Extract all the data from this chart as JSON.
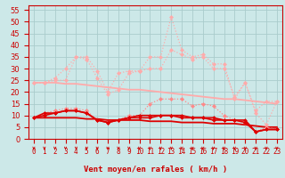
{
  "background_color": "#cce8e8",
  "grid_color": "#aacccc",
  "xlabel": "Vent moyen/en rafales ( km/h )",
  "x_labels": [
    "0",
    "1",
    "2",
    "3",
    "4",
    "5",
    "6",
    "7",
    "8",
    "9",
    "10",
    "11",
    "12",
    "13",
    "14",
    "15",
    "16",
    "17",
    "18",
    "19",
    "20",
    "21",
    "22",
    "23"
  ],
  "ylim": [
    0,
    57
  ],
  "yticks": [
    0,
    5,
    10,
    15,
    20,
    25,
    30,
    35,
    40,
    45,
    50,
    55
  ],
  "lines": [
    {
      "name": "rafales_high",
      "color": "#ffaaaa",
      "lw": 0.9,
      "marker": "D",
      "markersize": 2.2,
      "linestyle": ":",
      "y": [
        24,
        24,
        25,
        25,
        35,
        35,
        29,
        20,
        28,
        29,
        29,
        35,
        35,
        52,
        38,
        35,
        36,
        32,
        32,
        17,
        24,
        12,
        16,
        16
      ]
    },
    {
      "name": "rafales_mid",
      "color": "#ffaaaa",
      "lw": 0.9,
      "marker": "D",
      "markersize": 2.2,
      "linestyle": ":",
      "y": [
        24,
        24,
        26,
        30,
        35,
        34,
        26,
        19,
        21,
        28,
        29,
        30,
        30,
        38,
        36,
        34,
        35,
        30,
        30,
        18,
        24,
        11,
        6,
        16
      ]
    },
    {
      "name": "vent_mid",
      "color": "#ff8888",
      "lw": 0.9,
      "marker": "D",
      "markersize": 2.2,
      "linestyle": ":",
      "y": [
        9,
        11,
        12,
        13,
        13,
        12,
        8,
        7,
        8,
        10,
        10,
        15,
        17,
        17,
        17,
        14,
        15,
        14,
        10,
        8,
        7,
        3,
        5,
        4
      ]
    },
    {
      "name": "vent_dark1",
      "color": "#dd0000",
      "lw": 1.2,
      "marker": "D",
      "markersize": 2.0,
      "linestyle": "-",
      "y": [
        9,
        11,
        11,
        12,
        12,
        11,
        8,
        7,
        8,
        9,
        10,
        10,
        10,
        10,
        10,
        9,
        9,
        9,
        8,
        8,
        8,
        3,
        4,
        4
      ]
    },
    {
      "name": "vent_dark2",
      "color": "#dd0000",
      "lw": 1.2,
      "marker": "D",
      "markersize": 2.0,
      "linestyle": "-",
      "y": [
        9,
        10,
        11,
        12,
        12,
        11,
        8,
        7,
        8,
        9,
        9,
        9,
        10,
        10,
        9,
        9,
        9,
        8,
        8,
        8,
        7,
        3,
        4,
        4
      ]
    },
    {
      "name": "trend_rafales",
      "color": "#ffaaaa",
      "lw": 1.3,
      "marker": null,
      "linestyle": "-",
      "y": [
        24.0,
        24.0,
        24.0,
        23.5,
        23.5,
        23.0,
        22.5,
        22.0,
        21.5,
        21.0,
        21.0,
        20.5,
        20.0,
        19.5,
        19.0,
        18.5,
        18.0,
        17.5,
        17.0,
        17.0,
        16.5,
        16.0,
        15.5,
        15.0
      ]
    },
    {
      "name": "trend_vent",
      "color": "#dd0000",
      "lw": 1.3,
      "marker": null,
      "linestyle": "-",
      "y": [
        9.0,
        9.0,
        9.0,
        9.0,
        9.0,
        8.5,
        8.5,
        8.0,
        8.0,
        8.0,
        8.0,
        7.5,
        7.5,
        7.5,
        7.0,
        7.0,
        7.0,
        6.5,
        6.5,
        6.5,
        6.0,
        5.5,
        5.0,
        5.0
      ]
    }
  ],
  "arrow_color": "#cc0000",
  "tick_color": "#cc0000",
  "spine_color": "#cc0000",
  "xlabel_color": "#cc0000",
  "xlabel_fontsize": 6.5,
  "ytick_fontsize": 6,
  "xtick_fontsize": 5.5
}
